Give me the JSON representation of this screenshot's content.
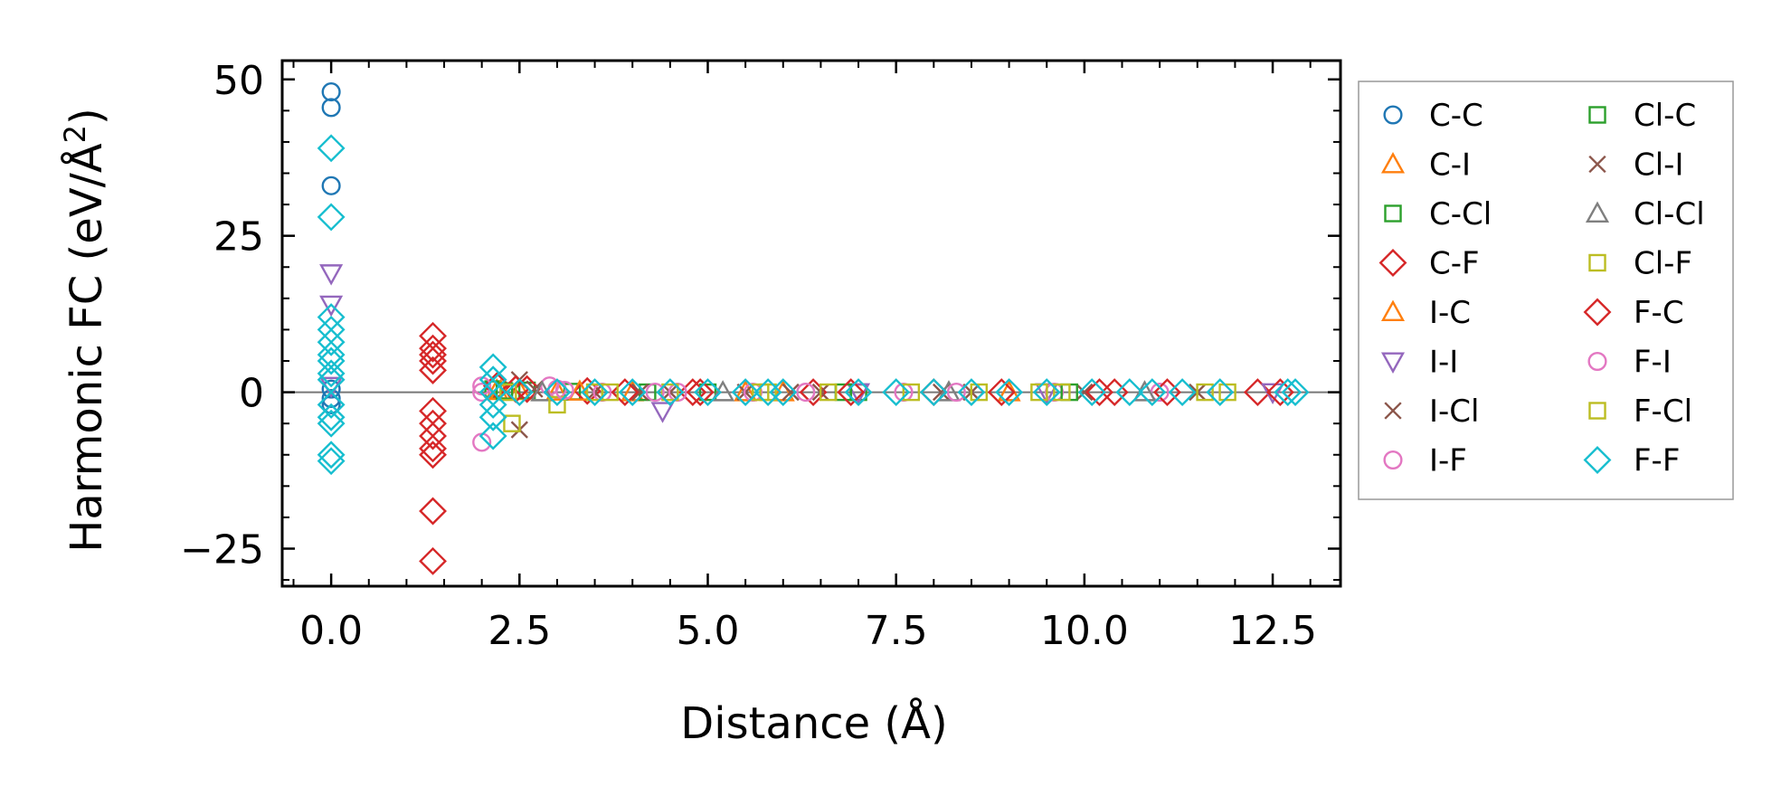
{
  "chart_data": {
    "type": "scatter",
    "title": "",
    "xlabel": "Distance (Å)",
    "ylabel_main": "Harmonic FC (eV/Å",
    "ylabel_sup": "2",
    "ylabel_close": ")",
    "xlim": [
      -0.65,
      13.4
    ],
    "ylim": [
      -31,
      53
    ],
    "xticks": [
      0.0,
      2.5,
      5.0,
      7.5,
      10.0,
      12.5
    ],
    "xtick_labels": [
      "0.0",
      "2.5",
      "5.0",
      "7.5",
      "10.0",
      "12.5"
    ],
    "yticks": [
      -25,
      0,
      25,
      50
    ],
    "ytick_labels": [
      "−25",
      "0",
      "25",
      "50"
    ],
    "zero_line": true,
    "grid": false,
    "legend_position": "outside-right",
    "series": [
      {
        "name": "C-C",
        "marker": "circle",
        "color": "#1f77b4",
        "points": [
          [
            0,
            48
          ],
          [
            0,
            45.5
          ],
          [
            0,
            33
          ],
          [
            0,
            -2
          ],
          [
            0,
            0.5
          ],
          [
            0,
            -1
          ]
        ]
      },
      {
        "name": "C-I",
        "marker": "triangle-up",
        "color": "#ff7f0e",
        "points": [
          [
            2.2,
            0.3
          ],
          [
            2.5,
            0.2
          ],
          [
            3.0,
            0.1
          ],
          [
            4.0,
            0
          ],
          [
            6.0,
            0
          ]
        ]
      },
      {
        "name": "C-Cl",
        "marker": "square",
        "color": "#2ca02c",
        "points": [
          [
            2.15,
            0.5
          ],
          [
            2.6,
            0.3
          ],
          [
            3.2,
            0.1
          ],
          [
            5.0,
            0
          ],
          [
            7.0,
            0
          ]
        ]
      },
      {
        "name": "C-F",
        "marker": "diamond",
        "color": "#d62728",
        "points": [
          [
            1.35,
            9
          ],
          [
            1.35,
            7
          ],
          [
            1.35,
            6
          ],
          [
            1.35,
            5
          ],
          [
            1.35,
            3.5
          ],
          [
            1.35,
            -3
          ],
          [
            1.35,
            -5
          ],
          [
            1.35,
            -7
          ],
          [
            1.35,
            -9
          ],
          [
            1.35,
            -10
          ],
          [
            1.35,
            -19
          ],
          [
            1.35,
            -27
          ],
          [
            2.2,
            1
          ],
          [
            2.6,
            0.5
          ],
          [
            3.4,
            0.2
          ],
          [
            4.8,
            0
          ],
          [
            6.4,
            0
          ],
          [
            8.0,
            0
          ],
          [
            10.4,
            0
          ],
          [
            12.3,
            0
          ]
        ]
      },
      {
        "name": "I-C",
        "marker": "triangle-up",
        "color": "#ff7f0e",
        "points": [
          [
            2.25,
            0.2
          ],
          [
            3.3,
            0.1
          ],
          [
            5.5,
            0
          ],
          [
            9.0,
            0
          ]
        ]
      },
      {
        "name": "I-I",
        "marker": "triangle-down",
        "color": "#9467bd",
        "points": [
          [
            0,
            19
          ],
          [
            0,
            14
          ],
          [
            0,
            1
          ],
          [
            4.4,
            -3
          ],
          [
            7.0,
            0
          ],
          [
            9.5,
            0
          ],
          [
            12.5,
            0
          ]
        ]
      },
      {
        "name": "I-Cl",
        "marker": "x",
        "color": "#8c564b",
        "points": [
          [
            2.5,
            2
          ],
          [
            2.5,
            -6
          ],
          [
            3.5,
            0
          ],
          [
            4.5,
            0
          ],
          [
            5.5,
            0
          ],
          [
            6.5,
            0
          ],
          [
            8.5,
            0
          ],
          [
            10.0,
            0
          ],
          [
            11.5,
            0
          ]
        ]
      },
      {
        "name": "I-F",
        "marker": "circle",
        "color": "#e377c2",
        "points": [
          [
            2.0,
            1
          ],
          [
            2.0,
            -8
          ],
          [
            2.9,
            1
          ],
          [
            3.0,
            0.5
          ],
          [
            3.6,
            0
          ],
          [
            4.6,
            0
          ],
          [
            5.6,
            0
          ],
          [
            7.6,
            0
          ],
          [
            9.6,
            0
          ],
          [
            11.0,
            0
          ]
        ]
      },
      {
        "name": "Cl-C",
        "marker": "square",
        "color": "#2ca02c",
        "points": [
          [
            2.3,
            0.2
          ],
          [
            4.2,
            0
          ],
          [
            6.8,
            0
          ],
          [
            9.8,
            0
          ]
        ]
      },
      {
        "name": "Cl-I",
        "marker": "x",
        "color": "#8c564b",
        "points": [
          [
            2.7,
            0.5
          ],
          [
            4.1,
            0
          ],
          [
            6.1,
            0
          ],
          [
            8.1,
            0
          ]
        ]
      },
      {
        "name": "Cl-Cl",
        "marker": "triangle-up",
        "color": "#7f7f7f",
        "points": [
          [
            2.8,
            0
          ],
          [
            5.2,
            0
          ],
          [
            8.2,
            0
          ],
          [
            10.8,
            0
          ]
        ]
      },
      {
        "name": "Cl-F",
        "marker": "square",
        "color": "#bcbd22",
        "points": [
          [
            2.4,
            -5
          ],
          [
            3.0,
            -2
          ],
          [
            3.5,
            0
          ],
          [
            4.5,
            0
          ],
          [
            5.8,
            0
          ],
          [
            6.6,
            0
          ],
          [
            8.6,
            0
          ],
          [
            9.4,
            0
          ],
          [
            11.6,
            0
          ],
          [
            11.9,
            0
          ]
        ]
      },
      {
        "name": "F-C",
        "marker": "diamond",
        "color": "#d62728",
        "points": [
          [
            2.45,
            0.5
          ],
          [
            3.9,
            0
          ],
          [
            4.9,
            0
          ],
          [
            6.9,
            0
          ],
          [
            8.9,
            0
          ],
          [
            10.2,
            0
          ],
          [
            11.1,
            0
          ],
          [
            12.6,
            0
          ]
        ]
      },
      {
        "name": "F-I",
        "marker": "circle",
        "color": "#e377c2",
        "points": [
          [
            2.0,
            0
          ],
          [
            3.1,
            0.3
          ],
          [
            4.3,
            0
          ],
          [
            6.3,
            0
          ],
          [
            8.3,
            0
          ]
        ]
      },
      {
        "name": "F-Cl",
        "marker": "square",
        "color": "#bcbd22",
        "points": [
          [
            2.35,
            0
          ],
          [
            3.7,
            0
          ],
          [
            5.7,
            0
          ],
          [
            7.7,
            0
          ],
          [
            9.7,
            0
          ]
        ]
      },
      {
        "name": "F-F",
        "marker": "diamond",
        "color": "#17becf",
        "points": [
          [
            0,
            39
          ],
          [
            0,
            28
          ],
          [
            0,
            12
          ],
          [
            0,
            10
          ],
          [
            0,
            8
          ],
          [
            0,
            6
          ],
          [
            0,
            5
          ],
          [
            0,
            3
          ],
          [
            0,
            2
          ],
          [
            0,
            -2
          ],
          [
            0,
            -4
          ],
          [
            0,
            -5
          ],
          [
            0,
            -10
          ],
          [
            0,
            -11
          ],
          [
            2.15,
            4
          ],
          [
            2.15,
            2
          ],
          [
            2.15,
            0
          ],
          [
            2.15,
            -2
          ],
          [
            2.15,
            -4
          ],
          [
            2.15,
            -7
          ],
          [
            2.5,
            0
          ],
          [
            3.0,
            0
          ],
          [
            3.5,
            0
          ],
          [
            4.0,
            0
          ],
          [
            4.5,
            0
          ],
          [
            5.0,
            0
          ],
          [
            5.5,
            0
          ],
          [
            5.8,
            0
          ],
          [
            6.0,
            0
          ],
          [
            7.0,
            0
          ],
          [
            7.5,
            0
          ],
          [
            8.0,
            0
          ],
          [
            8.5,
            0
          ],
          [
            9.0,
            0
          ],
          [
            9.5,
            0
          ],
          [
            10.1,
            0
          ],
          [
            10.6,
            0
          ],
          [
            10.9,
            0
          ],
          [
            11.3,
            0
          ],
          [
            11.8,
            0
          ],
          [
            12.7,
            0
          ],
          [
            12.8,
            0
          ]
        ]
      }
    ]
  }
}
